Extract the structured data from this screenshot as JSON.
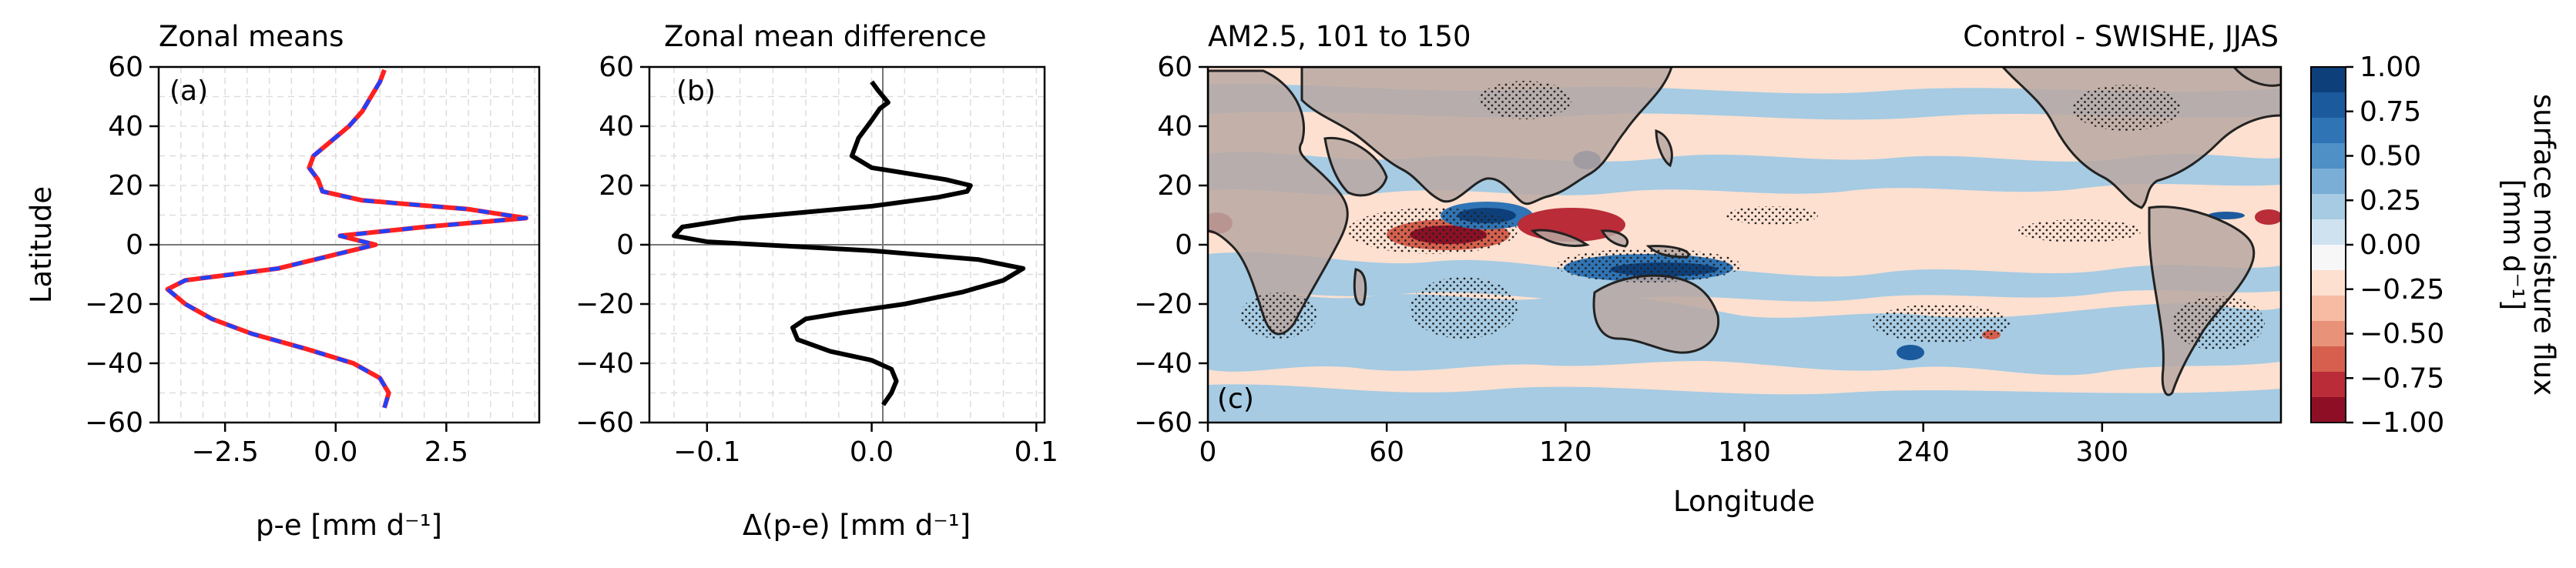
{
  "chart_data": [
    {
      "type": "line",
      "panel": "(a)",
      "title": "Zonal means",
      "xlabel": "p-e [mm d⁻¹]",
      "ylabel": "Latitude",
      "xlim": [
        -4.0,
        4.6
      ],
      "ylim": [
        -60,
        60
      ],
      "xticks": [
        "−2.5",
        "0.0",
        "2.5"
      ],
      "yticks": [
        "−60",
        "−40",
        "−20",
        "0",
        "20",
        "40",
        "60"
      ],
      "grid": true,
      "series": [
        {
          "color": "#ff2020",
          "style": "solid",
          "y": [
            -55,
            -50,
            -45,
            -40,
            -35,
            -30,
            -25,
            -20,
            -15,
            -12,
            -8,
            -4,
            0,
            3,
            6,
            9,
            12,
            15,
            18,
            22,
            26,
            30,
            35,
            40,
            45,
            50,
            55,
            59
          ],
          "x": [
            1.1,
            1.2,
            1.0,
            0.4,
            -0.7,
            -1.9,
            -2.8,
            -3.4,
            -3.8,
            -3.4,
            -1.3,
            -0.2,
            0.9,
            0.1,
            2.0,
            4.3,
            3.0,
            0.6,
            -0.3,
            -0.4,
            -0.6,
            -0.5,
            -0.1,
            0.3,
            0.6,
            0.8,
            1.0,
            1.1
          ]
        },
        {
          "color": "#2040ff",
          "style": "dashed",
          "y": [
            -55,
            -50,
            -45,
            -40,
            -35,
            -30,
            -25,
            -20,
            -15,
            -12,
            -8,
            -4,
            0,
            3,
            6,
            9,
            12,
            15,
            18,
            22,
            26,
            30,
            35,
            40,
            45,
            50,
            55,
            59
          ],
          "x": [
            1.1,
            1.2,
            1.0,
            0.4,
            -0.7,
            -1.9,
            -2.8,
            -3.4,
            -3.8,
            -3.4,
            -1.3,
            -0.2,
            0.9,
            0.1,
            2.0,
            4.3,
            3.0,
            0.6,
            -0.3,
            -0.4,
            -0.6,
            -0.5,
            -0.1,
            0.3,
            0.6,
            0.8,
            1.0,
            1.1
          ]
        }
      ]
    },
    {
      "type": "line",
      "panel": "(b)",
      "title": "Zonal mean difference",
      "xlabel": "Δ(p-e) [mm d⁻¹]",
      "ylabel": "",
      "xlim": [
        -0.135,
        0.105
      ],
      "ylim": [
        -60,
        60
      ],
      "xticks": [
        "−0.1",
        "0.0",
        "0.1"
      ],
      "yticks": [
        "−60",
        "−40",
        "−20",
        "0",
        "20",
        "40",
        "60"
      ],
      "grid": true,
      "series": [
        {
          "color": "#000000",
          "style": "solid",
          "y": [
            -54,
            -50,
            -46,
            -42,
            -39,
            -36,
            -32,
            -28,
            -25,
            -23,
            -20,
            -16,
            -12,
            -8,
            -5,
            -2,
            1,
            3,
            6,
            9,
            13,
            16,
            18,
            20,
            22,
            26,
            30,
            36,
            42,
            46,
            48,
            52,
            55
          ],
          "x": [
            0.007,
            0.012,
            0.015,
            0.012,
            0.0,
            -0.025,
            -0.045,
            -0.048,
            -0.04,
            -0.018,
            0.02,
            0.055,
            0.08,
            0.092,
            0.065,
            0.0,
            -0.1,
            -0.12,
            -0.115,
            -0.08,
            0.0,
            0.04,
            0.058,
            0.06,
            0.045,
            0.0,
            -0.012,
            -0.008,
            0.0,
            0.005,
            0.01,
            0.004,
            0.0
          ]
        }
      ]
    },
    {
      "type": "heatmap",
      "panel": "(c)",
      "title": "AM2.5, 101 to 150",
      "title_right": "Control - SWISHE, JJAS",
      "xlabel": "Longitude",
      "ylabel": "",
      "xlim": [
        0,
        360
      ],
      "ylim": [
        -60,
        60
      ],
      "xticks": [
        "0",
        "60",
        "120",
        "180",
        "240",
        "300"
      ],
      "yticks": [
        "−60",
        "−40",
        "−20",
        "0",
        "20",
        "40",
        "60"
      ],
      "colorbar": {
        "label_line1": "surface moisture flux",
        "label_line2": "[mm d⁻¹]",
        "range": [
          -1.0,
          1.0
        ],
        "ticks": [
          "1.00",
          "0.75",
          "0.50",
          "0.25",
          "0.00",
          "−0.25",
          "−0.50",
          "−0.75",
          "−1.00"
        ],
        "colors_top_to_bottom": [
          "#0d3f7a",
          "#1c5a9e",
          "#2f74b5",
          "#4f90c6",
          "#7aaed6",
          "#a6cbe3",
          "#cfe2f0",
          "#f7f7f7",
          "#fde0d0",
          "#f7bba4",
          "#e9927a",
          "#d6604d",
          "#b92c38",
          "#8e0f25"
        ]
      },
      "regions": [
        {
          "kind": "ocean-negative",
          "lon": [
            0,
            360
          ],
          "lat": [
            -60,
            60
          ],
          "value": -0.15
        },
        {
          "kind": "positive-band",
          "lon": [
            0,
            360
          ],
          "lat": [
            -28,
            -8
          ],
          "value": 0.15
        },
        {
          "kind": "positive-band",
          "lon": [
            0,
            360
          ],
          "lat": [
            8,
            26
          ],
          "value": 0.12
        },
        {
          "kind": "strong-negative",
          "lon": [
            55,
            100
          ],
          "lat": [
            0,
            10
          ],
          "value": -0.9
        },
        {
          "kind": "strong-positive",
          "lon": [
            75,
            110
          ],
          "lat": [
            2,
            14
          ],
          "value": 0.9
        },
        {
          "kind": "strong-positive",
          "lon": [
            118,
            160
          ],
          "lat": [
            -12,
            -2
          ],
          "value": 0.8
        },
        {
          "kind": "strong-positive",
          "lon": [
            125,
            135
          ],
          "lat": [
            22,
            30
          ],
          "value": 0.8
        },
        {
          "kind": "strong-negative",
          "lon": [
            100,
            125
          ],
          "lat": [
            -2,
            12
          ],
          "value": -0.9
        },
        {
          "kind": "strong-negative",
          "lon": [
            0,
            8
          ],
          "lat": [
            2,
            10
          ],
          "value": -0.7
        },
        {
          "kind": "strong-negative",
          "lon": [
            350,
            360
          ],
          "lat": [
            2,
            10
          ],
          "value": -0.7
        },
        {
          "kind": "strong-positive",
          "lon": [
            230,
            240
          ],
          "lat": [
            -40,
            -34
          ],
          "value": 0.6
        },
        {
          "kind": "strong-positive",
          "lon": [
            325,
            345
          ],
          "lat": [
            1,
            4
          ],
          "value": 0.6
        }
      ]
    }
  ]
}
